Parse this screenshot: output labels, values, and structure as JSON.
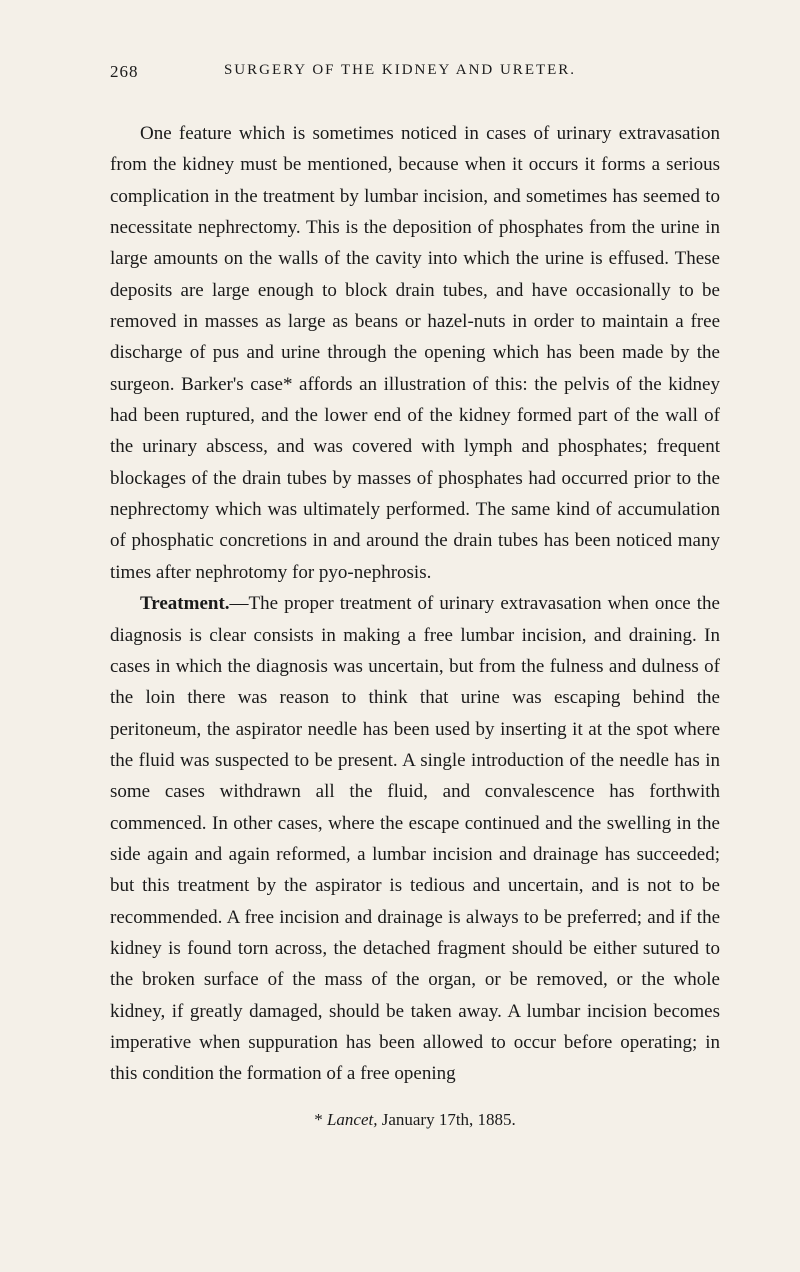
{
  "header": {
    "page_number": "268",
    "running_title": "SURGERY OF THE KIDNEY AND URETER."
  },
  "paragraphs": {
    "p1": "One feature which is sometimes noticed in cases of urinary extravasation from the kidney must be mentioned, because when it occurs it forms a serious complication in the treatment by lumbar incision, and sometimes has seemed to necessitate nephrectomy. This is the deposition of phosphates from the urine in large amounts on the walls of the cavity into which the urine is effused. These deposits are large enough to block drain tubes, and have occasionally to be removed in masses as large as beans or hazel-nuts in order to maintain a free discharge of pus and urine through the opening which has been made by the surgeon. Barker's case* affords an illustration of this: the pelvis of the kidney had been ruptured, and the lower end of the kidney formed part of the wall of the urinary abscess, and was covered with lymph and phosphates; frequent blockages of the drain tubes by masses of phosphates had occurred prior to the nephrectomy which was ultimately performed. The same kind of accumulation of phosphatic concretions in and around the drain tubes has been noticed many times after nephrotomy for pyo-nephrosis.",
    "p2_heading": "Treatment.",
    "p2_body": "—The proper treatment of urinary extravasation when once the diagnosis is clear consists in making a free lumbar incision, and draining. In cases in which the diagnosis was uncertain, but from the fulness and dulness of the loin there was reason to think that urine was escaping behind the peritoneum, the aspirator needle has been used by inserting it at the spot where the fluid was suspected to be present. A single introduction of the needle has in some cases withdrawn all the fluid, and convalescence has forthwith commenced. In other cases, where the escape continued and the swelling in the side again and again reformed, a lumbar incision and drainage has succeeded; but this treatment by the aspirator is tedious and uncertain, and is not to be recommended. A free incision and drainage is always to be preferred; and if the kidney is found torn across, the detached fragment should be either sutured to the broken surface of the mass of the organ, or be removed, or the whole kidney, if greatly damaged, should be taken away. A lumbar incision becomes imperative when suppuration has been allowed to occur before operating; in this condition the formation of a free opening"
  },
  "footnote": {
    "marker": "* ",
    "source": "Lancet,",
    "date": " January 17th, 1885."
  },
  "colors": {
    "background": "#f4f0e8",
    "text": "#1a1a1a"
  },
  "typography": {
    "body_fontsize": 19,
    "header_fontsize": 15,
    "footnote_fontsize": 17,
    "line_height": 1.65
  }
}
